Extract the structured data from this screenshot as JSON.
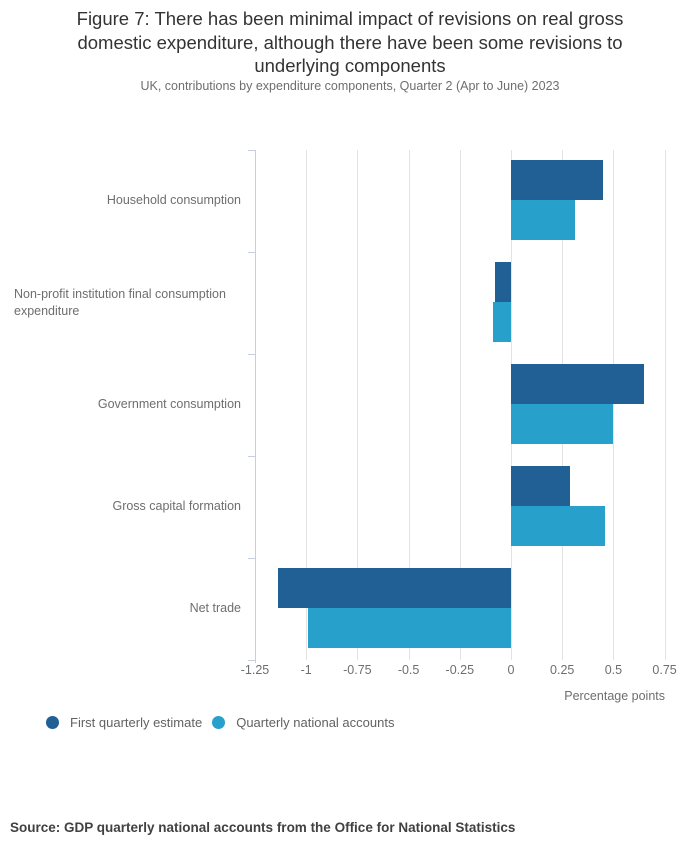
{
  "chart_data": {
    "type": "bar",
    "orientation": "horizontal",
    "title": "Figure 7: There has been minimal impact of revisions on real gross domestic expenditure, although there have been some revisions to underlying components",
    "subtitle": "UK, contributions by expenditure components, Quarter 2 (Apr to June) 2023",
    "categories": [
      "Household consumption",
      "Non-profit institution final consumption expenditure",
      "Government consumption",
      "Gross capital formation",
      "Net trade"
    ],
    "series": [
      {
        "name": "First quarterly estimate",
        "color": "#206095",
        "values": [
          0.45,
          -0.08,
          0.65,
          0.29,
          -1.14
        ]
      },
      {
        "name": "Quarterly national accounts",
        "color": "#27a0cc",
        "values": [
          0.31,
          -0.09,
          0.5,
          0.46,
          -0.99
        ]
      }
    ],
    "xlabel": "Percentage points",
    "xticks": [
      -1.25,
      -1,
      -0.75,
      -0.5,
      -0.25,
      0,
      0.25,
      0.5,
      0.75
    ],
    "xlim": [
      -1.25,
      0.825
    ],
    "grid": true,
    "legend_position": "bottom-left"
  },
  "footer": {
    "source": "Source: GDP quarterly national accounts from the Office for National Statistics"
  }
}
